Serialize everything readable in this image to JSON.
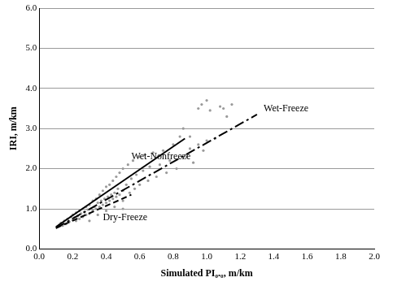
{
  "chart_data": {
    "type": "scatter",
    "x_label": "Simulated PI₀.₀, m/km",
    "y_label": "IRI, m/km",
    "xlim": [
      0,
      2.0
    ],
    "ylim": [
      0,
      6.0
    ],
    "xticks": [
      {
        "value": 0,
        "label": "0.0"
      },
      {
        "value": 0.2,
        "label": "0.2"
      },
      {
        "value": 0.4,
        "label": "0.4"
      },
      {
        "value": 0.6,
        "label": "0.6"
      },
      {
        "value": 0.8,
        "label": "0.8"
      },
      {
        "value": 1.0,
        "label": "1.0"
      },
      {
        "value": 1.2,
        "label": "1.2"
      },
      {
        "value": 1.4,
        "label": "1.4"
      },
      {
        "value": 1.6,
        "label": "1.6"
      },
      {
        "value": 1.8,
        "label": "1.8"
      },
      {
        "value": 2.0,
        "label": "2.0"
      }
    ],
    "yticks": [
      {
        "value": 0,
        "label": "0.0"
      },
      {
        "value": 1,
        "label": "1.0"
      },
      {
        "value": 2,
        "label": "2.0"
      },
      {
        "value": 3,
        "label": "3.0"
      },
      {
        "value": 4,
        "label": "4.0"
      },
      {
        "value": 5,
        "label": "5.0"
      },
      {
        "value": 6,
        "label": "6.0"
      }
    ],
    "grid": true,
    "series": [
      {
        "type": "scatter",
        "marker": "circle",
        "color": "#9a9a9a",
        "x": [
          0.12,
          0.13,
          0.14,
          0.15,
          0.16,
          0.17,
          0.18,
          0.19,
          0.2,
          0.2,
          0.21,
          0.22,
          0.22,
          0.23,
          0.24,
          0.24,
          0.25,
          0.26,
          0.26,
          0.27,
          0.28,
          0.28,
          0.29,
          0.3,
          0.3,
          0.31,
          0.32,
          0.32,
          0.33,
          0.34,
          0.34,
          0.35,
          0.36,
          0.36,
          0.37,
          0.38,
          0.38,
          0.39,
          0.4,
          0.4,
          0.41,
          0.42,
          0.42,
          0.43,
          0.44,
          0.44,
          0.45,
          0.46,
          0.46,
          0.47,
          0.48,
          0.48,
          0.5,
          0.5,
          0.5,
          0.52,
          0.53,
          0.54,
          0.55,
          0.56,
          0.57,
          0.58,
          0.6,
          0.6,
          0.62,
          0.63,
          0.65,
          0.66,
          0.68,
          0.7,
          0.72,
          0.74,
          0.76,
          0.78,
          0.8,
          0.82,
          0.84,
          0.86,
          0.88,
          0.9,
          0.92,
          0.95,
          0.97,
          0.98,
          1.0,
          1.0,
          1.02,
          1.05,
          1.08,
          1.1,
          1.12,
          1.15,
          0.95,
          0.9,
          0.3,
          0.35,
          0.4,
          0.45,
          0.5
        ],
        "values": [
          0.6,
          0.65,
          0.58,
          0.7,
          0.62,
          0.75,
          0.68,
          0.8,
          0.72,
          0.85,
          0.78,
          0.9,
          0.7,
          0.82,
          0.95,
          0.75,
          0.88,
          1.0,
          0.8,
          0.92,
          1.05,
          0.85,
          0.98,
          1.1,
          0.88,
          1.0,
          1.2,
          0.95,
          1.05,
          1.25,
          1.0,
          1.15,
          1.35,
          1.05,
          1.2,
          1.45,
          1.1,
          1.25,
          1.55,
          1.15,
          1.3,
          1.6,
          1.2,
          1.35,
          1.7,
          1.25,
          1.4,
          1.8,
          1.3,
          1.5,
          1.9,
          1.35,
          2.0,
          1.45,
          1.2,
          1.6,
          2.1,
          1.4,
          1.75,
          2.2,
          1.5,
          1.85,
          2.3,
          1.6,
          1.95,
          2.35,
          1.7,
          2.05,
          2.4,
          1.8,
          2.1,
          2.45,
          1.9,
          2.2,
          2.6,
          2.0,
          2.8,
          3.0,
          2.3,
          2.5,
          2.15,
          2.6,
          3.6,
          2.45,
          3.7,
          2.7,
          3.45,
          2.75,
          3.55,
          3.5,
          3.3,
          3.6,
          3.5,
          2.8,
          0.7,
          0.85,
          0.95,
          1.05,
          1.0
        ]
      },
      {
        "type": "line",
        "line_style": "solid",
        "color": "#000000",
        "x": [
          0.1,
          0.87
        ],
        "values": [
          0.55,
          2.75
        ]
      },
      {
        "type": "line",
        "line_style": "dashdot",
        "color": "#000000",
        "x": [
          0.1,
          1.3
        ],
        "values": [
          0.52,
          3.35
        ]
      },
      {
        "type": "line",
        "line_style": "dashed",
        "color": "#000000",
        "x": [
          0.1,
          0.55
        ],
        "values": [
          0.52,
          1.35
        ]
      }
    ],
    "annotations": [
      {
        "text": "Wet-Nonfreeze",
        "x": 0.55,
        "y": 2.3
      },
      {
        "text": "Wet-Freeze",
        "x": 1.34,
        "y": 3.5
      },
      {
        "text": "Dry-Freeze",
        "x": 0.38,
        "y": 0.78
      }
    ]
  }
}
